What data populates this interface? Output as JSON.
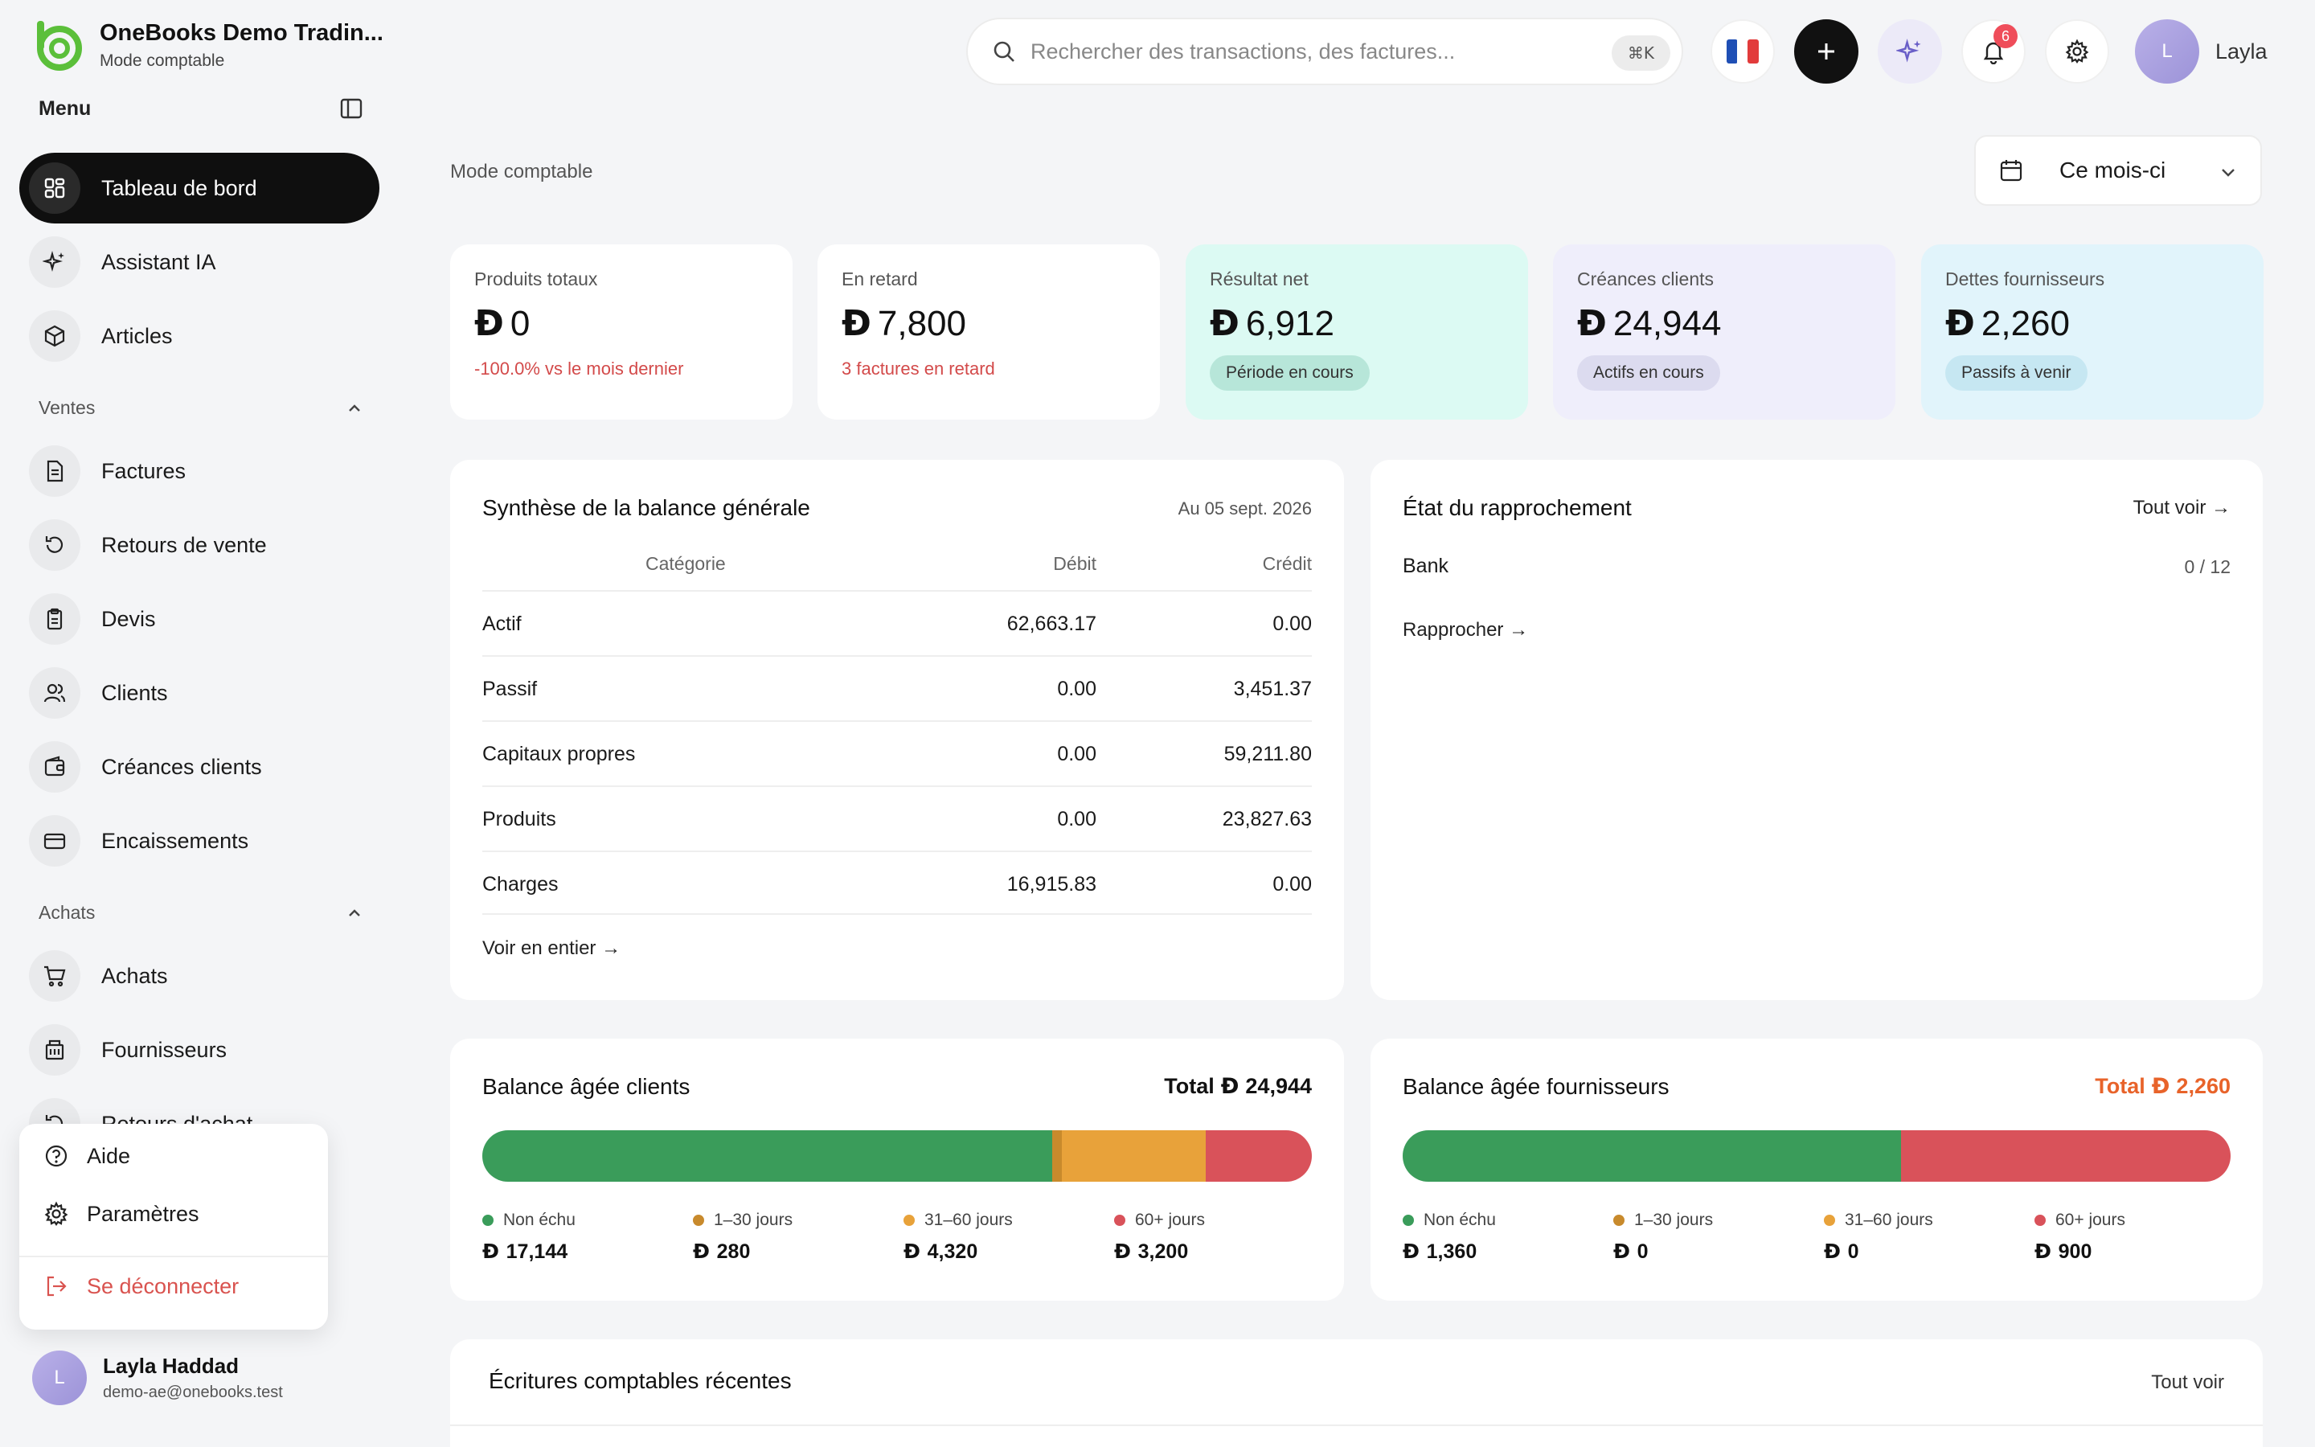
{
  "brand": {
    "name": "OneBooks Demo Tradin...",
    "subtitle": "Mode comptable"
  },
  "sidebar": {
    "menu_label": "Menu",
    "items_top": [
      {
        "label": "Tableau de bord",
        "icon": "dashboard-icon",
        "active": true
      },
      {
        "label": "Assistant IA",
        "icon": "sparkle-icon"
      },
      {
        "label": "Articles",
        "icon": "box-icon"
      }
    ],
    "sales_section": "Ventes",
    "sales_items": [
      {
        "label": "Factures",
        "icon": "invoice-icon"
      },
      {
        "label": "Retours de vente",
        "icon": "return-icon"
      },
      {
        "label": "Devis",
        "icon": "quote-icon"
      },
      {
        "label": "Clients",
        "icon": "users-icon"
      },
      {
        "label": "Créances clients",
        "icon": "wallet-icon"
      },
      {
        "label": "Encaissements",
        "icon": "card-icon"
      }
    ],
    "purchase_section": "Achats",
    "purchase_items": [
      {
        "label": "Achats",
        "icon": "cart-icon"
      },
      {
        "label": "Fournisseurs",
        "icon": "building-icon"
      },
      {
        "label": "Retours d'achat",
        "icon": "return-icon"
      }
    ],
    "popup": {
      "help": "Aide",
      "settings": "Paramètres",
      "logout": "Se déconnecter"
    },
    "user": {
      "initial": "L",
      "name": "Layla Haddad",
      "email": "demo-ae@onebooks.test"
    }
  },
  "topbar": {
    "search_placeholder": "Rechercher des transactions, des factures...",
    "shortcut": "⌘K",
    "notifications_count": "6",
    "user_initial": "L",
    "user_name": "Layla"
  },
  "main": {
    "breadcrumb": "Mode comptable",
    "period": "Ce mois-ci",
    "currency_symbol": "Ð",
    "kpis": [
      {
        "label": "Produits totaux",
        "value": "0",
        "note": "-100.0% vs le mois dernier"
      },
      {
        "label": "En retard",
        "value": "7,800",
        "note": "3 factures en retard"
      },
      {
        "label": "Résultat net",
        "value": "6,912",
        "pill": "Période en cours"
      },
      {
        "label": "Créances clients",
        "value": "24,944",
        "pill": "Actifs en cours"
      },
      {
        "label": "Dettes fournisseurs",
        "value": "2,260",
        "pill": "Passifs à venir"
      }
    ],
    "trial_balance": {
      "title": "Synthèse de la balance générale",
      "date": "Au 05 sept. 2026",
      "headers": {
        "category": "Catégorie",
        "debit": "Débit",
        "credit": "Crédit"
      },
      "rows": [
        {
          "category": "Actif",
          "debit": "62,663.17",
          "credit": "0.00"
        },
        {
          "category": "Passif",
          "debit": "0.00",
          "credit": "3,451.37"
        },
        {
          "category": "Capitaux propres",
          "debit": "0.00",
          "credit": "59,211.80"
        },
        {
          "category": "Produits",
          "debit": "0.00",
          "credit": "23,827.63"
        },
        {
          "category": "Charges",
          "debit": "16,915.83",
          "credit": "0.00"
        }
      ],
      "view_all": "Voir en entier →"
    },
    "reconciliation": {
      "title": "État du rapprochement",
      "view_all": "Tout voir →",
      "account": "Bank",
      "progress": "0 / 12",
      "action": "Rapprocher →"
    },
    "ar_aging": {
      "title": "Balance âgée clients",
      "total_label": "Total",
      "total": "24,944",
      "buckets": [
        {
          "label": "Non échu",
          "value": "17,144",
          "amount": 17144,
          "color": "#3a9c5a"
        },
        {
          "label": "1–30 jours",
          "value": "280",
          "amount": 280,
          "color": "#c88a2c"
        },
        {
          "label": "31–60 jours",
          "value": "4,320",
          "amount": 4320,
          "color": "#e8a23a"
        },
        {
          "label": "60+ jours",
          "value": "3,200",
          "amount": 3200,
          "color": "#d9525a"
        }
      ]
    },
    "ap_aging": {
      "title": "Balance âgée fournisseurs",
      "total_label": "Total",
      "total": "2,260",
      "total_color": "#e8632a",
      "buckets": [
        {
          "label": "Non échu",
          "value": "1,360",
          "amount": 1360,
          "color": "#3a9c5a"
        },
        {
          "label": "1–30 jours",
          "value": "0",
          "amount": 0,
          "color": "#c88a2c"
        },
        {
          "label": "31–60 jours",
          "value": "0",
          "amount": 0,
          "color": "#e8a23a"
        },
        {
          "label": "60+ jours",
          "value": "900",
          "amount": 900,
          "color": "#d9525a"
        }
      ]
    },
    "journal": {
      "title": "Écritures comptables récentes",
      "view_all": "Tout voir"
    }
  }
}
